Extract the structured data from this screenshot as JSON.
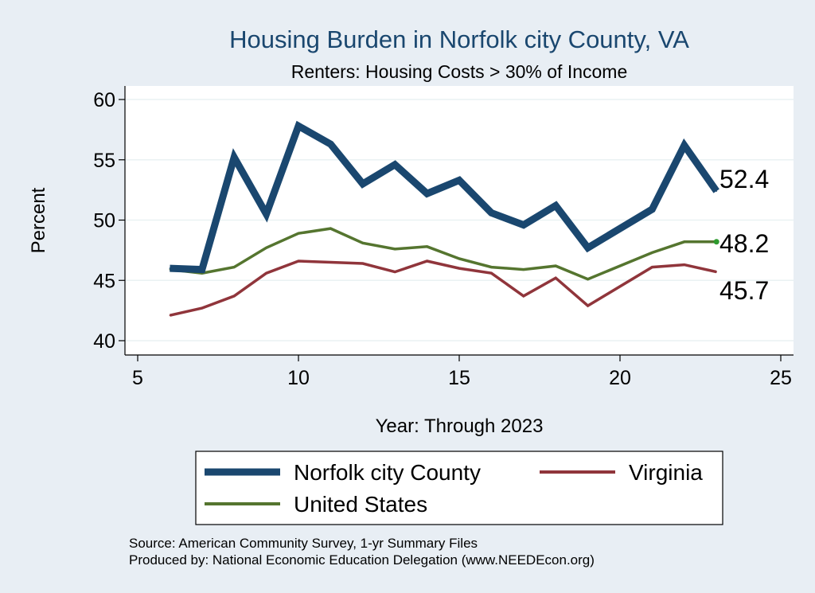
{
  "chart_data": {
    "type": "line",
    "title": "Housing Burden in Norfolk city County, VA",
    "subtitle": "Renters: Housing Costs > 30% of Income",
    "xlabel": "Year: Through 2023",
    "ylabel": "Percent",
    "xlim": [
      5,
      25
    ],
    "ylim": [
      40,
      60
    ],
    "xticks": [
      5,
      10,
      15,
      20,
      25
    ],
    "yticks": [
      40,
      45,
      50,
      55,
      60
    ],
    "grid": true,
    "legend_position": "bottom",
    "x": [
      6,
      7,
      8,
      9,
      10,
      11,
      12,
      13,
      14,
      15,
      16,
      17,
      18,
      19,
      21,
      22,
      23
    ],
    "series": [
      {
        "name": "Norfolk city County",
        "color": "#1a476f",
        "values": [
          46.0,
          45.9,
          55.2,
          50.5,
          57.8,
          56.3,
          53.0,
          54.6,
          52.2,
          53.3,
          50.6,
          49.6,
          51.2,
          47.7,
          50.9,
          56.2,
          52.4
        ],
        "end_label": "52.4"
      },
      {
        "name": "Virginia",
        "color": "#90353b",
        "values": [
          42.1,
          42.7,
          43.7,
          45.6,
          46.6,
          46.5,
          46.4,
          45.7,
          46.6,
          46.0,
          45.6,
          43.7,
          45.2,
          42.9,
          46.1,
          46.3,
          45.7
        ],
        "end_label": "45.7"
      },
      {
        "name": "United States",
        "color": "#55752f",
        "values": [
          45.9,
          45.6,
          46.1,
          47.7,
          48.9,
          49.3,
          48.1,
          47.6,
          47.8,
          46.8,
          46.1,
          45.9,
          46.2,
          45.1,
          47.3,
          48.2,
          48.2
        ],
        "end_label": "48.2"
      }
    ]
  },
  "footer": {
    "source": "Source: American Community Survey, 1-yr Summary Files",
    "produced_by": "Produced by: National Economic Education Delegation (www.NEEDEcon.org)"
  }
}
